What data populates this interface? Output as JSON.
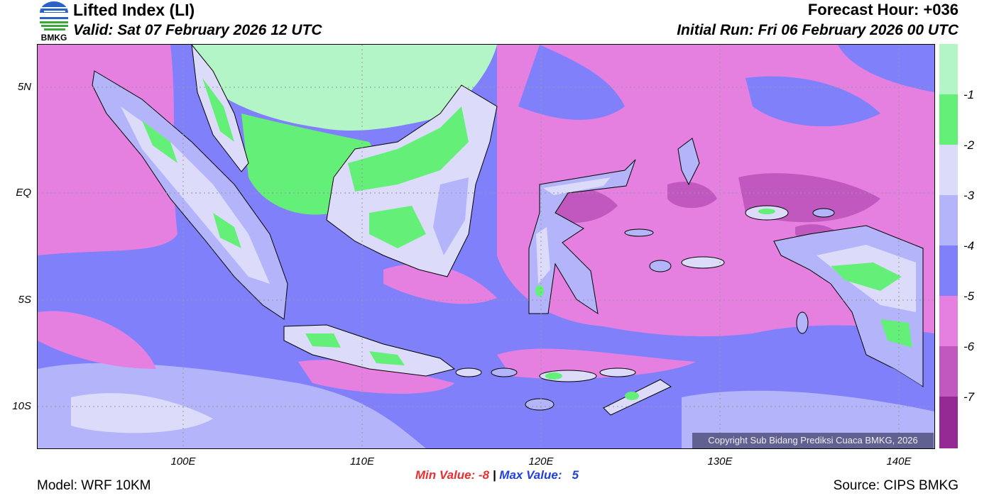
{
  "header": {
    "logo_text": "BMKG",
    "title": "Lifted Index (LI)",
    "valid": "Valid: Sat 07 February 2026 12 UTC",
    "forecast_hour": "Forecast Hour: +036",
    "initial_run": "Initial Run: Fri 06 February 2026 00 UTC"
  },
  "map": {
    "lat_labels": [
      "5N",
      "EQ",
      "5S",
      "10S"
    ],
    "lon_labels": [
      "100E",
      "110E",
      "120E",
      "130E",
      "140E"
    ],
    "copyright": "Copyright Sub Bidang Prediksi Cuaca BMKG, 2026"
  },
  "colorbar": {
    "labels": [
      "-1",
      "-2",
      "-3",
      "-4",
      "-5",
      "-6",
      "-7"
    ],
    "colors": [
      "#b4f5c8",
      "#64ef78",
      "#dcdcfa",
      "#b4b4fa",
      "#8080fa",
      "#e680e0",
      "#c058c0",
      "#962a94"
    ]
  },
  "footer": {
    "min_label": "Min Value:  -8",
    "separator": " | ",
    "max_label": "Max Value:   5",
    "model": "Model: WRF 10KM",
    "source": "Source: CIPS BMKG"
  }
}
